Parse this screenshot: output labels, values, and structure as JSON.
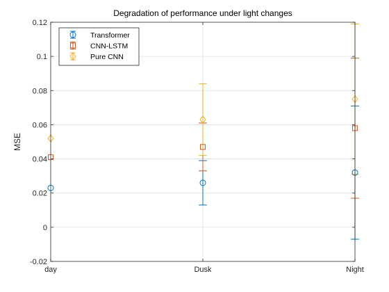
{
  "chart_data": {
    "type": "scatter",
    "title": "Degradation of performance under light changes",
    "xlabel": "",
    "ylabel": "MSE",
    "categories": [
      "day",
      "Dusk",
      "Night"
    ],
    "ylim": [
      -0.02,
      0.12
    ],
    "yticks": [
      -0.02,
      0,
      0.02,
      0.04,
      0.06,
      0.08,
      0.1,
      0.12
    ],
    "ytick_labels": [
      "-0.02",
      "0",
      "0.02",
      "0.04",
      "0.06",
      "0.08",
      "0.1",
      "0.12"
    ],
    "grid": true,
    "legend_position": "top-left",
    "series": [
      {
        "name": "Transformer",
        "marker": "circle",
        "color": "#0072BD",
        "values": [
          0.023,
          0.026,
          0.032
        ],
        "lower": [
          0.023,
          0.013,
          -0.007
        ],
        "upper": [
          0.023,
          0.039,
          0.071
        ]
      },
      {
        "name": "CNN-LSTM",
        "marker": "square",
        "color": "#D95319",
        "values": [
          0.041,
          0.047,
          0.058
        ],
        "lower": [
          0.041,
          0.033,
          0.017
        ],
        "upper": [
          0.041,
          0.061,
          0.099
        ]
      },
      {
        "name": "Pure CNN",
        "marker": "diamond",
        "color": "#EDB120",
        "values": [
          0.052,
          0.063,
          0.075
        ],
        "lower": [
          0.052,
          0.042,
          0.031
        ],
        "upper": [
          0.052,
          0.084,
          0.119
        ]
      }
    ]
  }
}
